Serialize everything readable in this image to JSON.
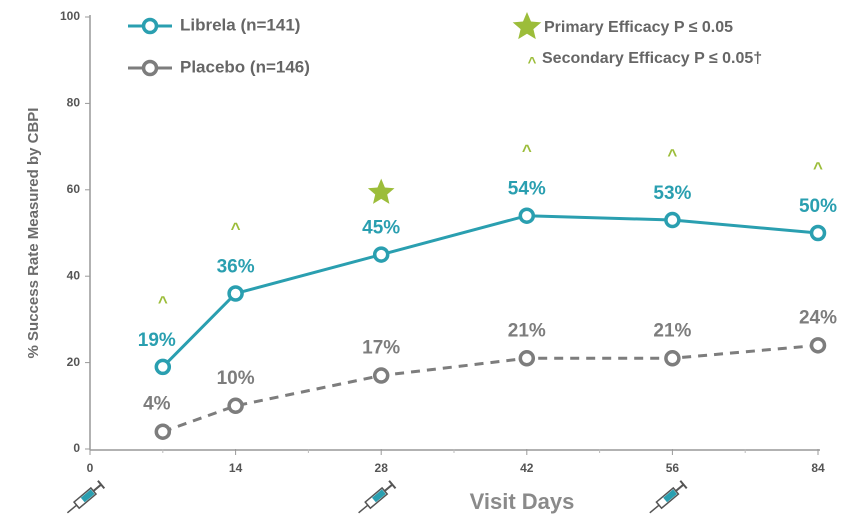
{
  "chart_data": {
    "type": "line",
    "x_label": "Visit Days",
    "y_label": "% Success Rate Measured by CBPI",
    "x": [
      7,
      14,
      28,
      42,
      56,
      84
    ],
    "xticks": [
      0,
      14,
      28,
      42,
      56,
      84
    ],
    "xlim": [
      0,
      84
    ],
    "ylim": [
      0,
      100
    ],
    "yticks": [
      0,
      20,
      40,
      60,
      80,
      100
    ],
    "series": [
      {
        "name": "Librela (n=141)",
        "color": "#2a9fb0",
        "dash": false,
        "values": [
          19,
          36,
          45,
          54,
          53,
          50
        ],
        "value_labels": [
          "19%",
          "36%",
          "45%",
          "54%",
          "53%",
          "50%"
        ]
      },
      {
        "name": "Placebo (n=146)",
        "color": "#7d7d7d",
        "dash": true,
        "values": [
          4,
          10,
          17,
          21,
          21,
          24
        ],
        "value_labels": [
          "4%",
          "10%",
          "17%",
          "21%",
          "21%",
          "24%"
        ]
      }
    ],
    "significance_color": "#9cbd3a",
    "significance": [
      "^",
      "^",
      "star",
      "^",
      "^",
      "^"
    ],
    "significance_legend": [
      "Primary Efficacy P ≤ 0.05",
      "^",
      "Secondary Efficacy P ≤ 0.05†"
    ],
    "injection_days": [
      0,
      28,
      56
    ]
  }
}
